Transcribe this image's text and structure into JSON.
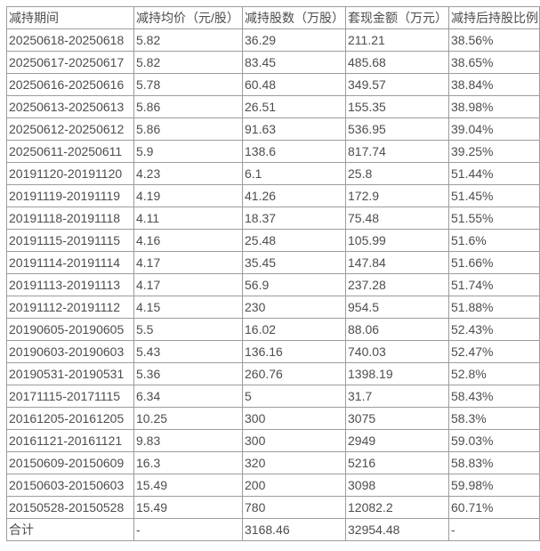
{
  "colors": {
    "table_border": "#9c9c9c",
    "text": "#4d4d4d",
    "background": "#ffffff"
  },
  "chart_data": {
    "type": "table",
    "columns": [
      "减持期间",
      "减持均价（元/股）",
      "减持股数（万股）",
      "套现金额（万元）",
      "减持后持股比例"
    ],
    "rows": [
      [
        "20250618-20250618",
        "5.82",
        "36.29",
        "211.21",
        "38.56%"
      ],
      [
        "20250617-20250617",
        "5.82",
        "83.45",
        "485.68",
        "38.65%"
      ],
      [
        "20250616-20250616",
        "5.78",
        "60.48",
        "349.57",
        "38.84%"
      ],
      [
        "20250613-20250613",
        "5.86",
        "26.51",
        "155.35",
        "38.98%"
      ],
      [
        "20250612-20250612",
        "5.86",
        "91.63",
        "536.95",
        "39.04%"
      ],
      [
        "20250611-20250611",
        "5.9",
        "138.6",
        "817.74",
        "39.25%"
      ],
      [
        "20191120-20191120",
        "4.23",
        "6.1",
        "25.8",
        "51.44%"
      ],
      [
        "20191119-20191119",
        "4.19",
        "41.26",
        "172.9",
        "51.45%"
      ],
      [
        "20191118-20191118",
        "4.11",
        "18.37",
        "75.48",
        "51.55%"
      ],
      [
        "20191115-20191115",
        "4.16",
        "25.48",
        "105.99",
        "51.6%"
      ],
      [
        "20191114-20191114",
        "4.17",
        "35.45",
        "147.84",
        "51.66%"
      ],
      [
        "20191113-20191113",
        "4.17",
        "56.9",
        "237.28",
        "51.74%"
      ],
      [
        "20191112-20191112",
        "4.15",
        "230",
        "954.5",
        "51.88%"
      ],
      [
        "20190605-20190605",
        "5.5",
        "16.02",
        "88.06",
        "52.43%"
      ],
      [
        "20190603-20190603",
        "5.43",
        "136.16",
        "740.03",
        "52.47%"
      ],
      [
        "20190531-20190531",
        "5.36",
        "260.76",
        "1398.19",
        "52.8%"
      ],
      [
        "20171115-20171115",
        "6.34",
        "5",
        "31.7",
        "58.43%"
      ],
      [
        "20161205-20161205",
        "10.25",
        "300",
        "3075",
        "58.3%"
      ],
      [
        "20161121-20161121",
        "9.83",
        "300",
        "2949",
        "59.03%"
      ],
      [
        "20150609-20150609",
        "16.3",
        "320",
        "5216",
        "58.83%"
      ],
      [
        "20150603-20150603",
        "15.49",
        "200",
        "3098",
        "59.98%"
      ],
      [
        "20150528-20150528",
        "15.49",
        "780",
        "12082.2",
        "60.71%"
      ]
    ],
    "total_row": [
      "合计",
      "-",
      "3168.46",
      "32954.48",
      "-"
    ],
    "title": "",
    "layout": {
      "grid": "on",
      "header_position": "top"
    }
  }
}
